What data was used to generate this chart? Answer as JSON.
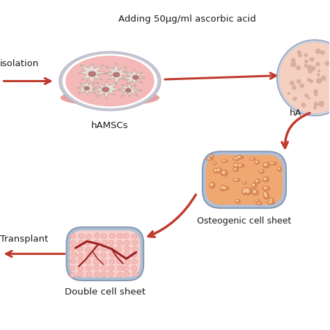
{
  "bg_color": "#ffffff",
  "arrow_color": "#c0392b",
  "title_label": "Adding 50μg/ml ascorbic acid",
  "hamsc_label": "hAMSCs",
  "ha_label": "hA",
  "osteogenic_label": "Osteogenic cell sheet",
  "double_label": "Double cell sheet",
  "transplant_label": "Transplant",
  "isolation_label": "isolation",
  "petri_rim_color": "#c8c8d2",
  "petri_side_color": "#e8a0a0",
  "petri_body_color": "#f5b8b8",
  "petri_white": "#f8f0f0",
  "cell_body_color": "#e8ddd8",
  "cell_outline": "#c0a898",
  "cell_nucleus_color": "#b87878",
  "flask_rim_color": "#c8d0dc",
  "flask_body_color": "#f5d0c0",
  "flask_dot_color": "#d8b0a0",
  "osteo_rim_color": "#b0c0d8",
  "osteo_body_color": "#f0a870",
  "osteo_dot_color": "#d88858",
  "osteo_dot_light": "#f8c898",
  "double_rim_color": "#b0c0d4",
  "double_body_color": "#f8d0cc",
  "double_cell_color": "#f5bcb8",
  "double_cell_ec": "#e8a0a0",
  "double_vein_color": "#9b2020",
  "label_color": "#1a1a1a"
}
